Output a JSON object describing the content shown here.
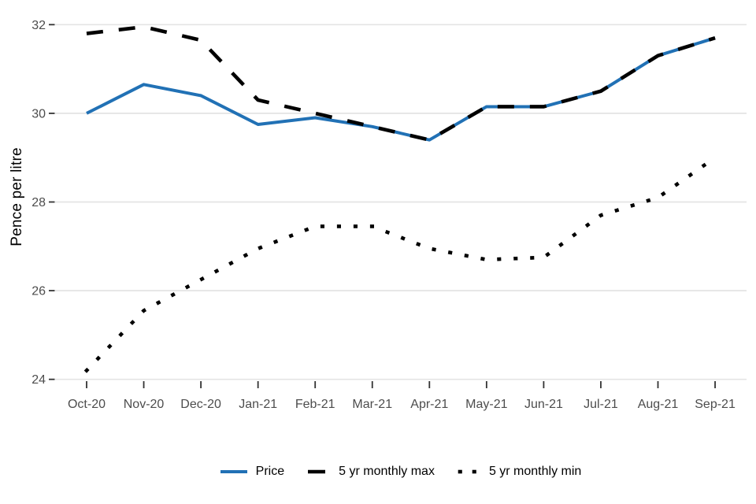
{
  "chart_data": {
    "type": "line",
    "title": "",
    "xlabel": "",
    "ylabel": "Pence per litre",
    "categories": [
      "Oct-20",
      "Nov-20",
      "Dec-20",
      "Jan-21",
      "Feb-21",
      "Mar-21",
      "Apr-21",
      "May-21",
      "Jun-21",
      "Jul-21",
      "Aug-21",
      "Sep-21"
    ],
    "y_ticks": [
      24,
      26,
      28,
      30,
      32
    ],
    "ylim": [
      23.8,
      32.3
    ],
    "grid": "horizontal",
    "legend_position": "bottom",
    "axis_text_color": "#4d4d4d",
    "tick_color": "#333333",
    "grid_color": "#e4e4e4",
    "series": [
      {
        "name": "Price",
        "style": "solid",
        "color": "#2171b5",
        "values": [
          30.0,
          30.65,
          30.4,
          29.75,
          29.9,
          29.7,
          29.4,
          30.15,
          30.15,
          30.5,
          31.3,
          31.7
        ]
      },
      {
        "name": "5 yr monthly max",
        "style": "dashed",
        "color": "#000000",
        "values": [
          31.8,
          31.95,
          31.65,
          30.3,
          30.0,
          29.7,
          29.4,
          30.15,
          30.15,
          30.5,
          31.3,
          31.7
        ]
      },
      {
        "name": "5 yr monthly min",
        "style": "dotted",
        "color": "#000000",
        "values": [
          24.2,
          25.55,
          26.25,
          26.95,
          27.45,
          27.45,
          26.95,
          26.7,
          26.75,
          27.7,
          28.1,
          29.0
        ]
      }
    ],
    "draw_order": [
      2,
      0,
      1
    ]
  }
}
